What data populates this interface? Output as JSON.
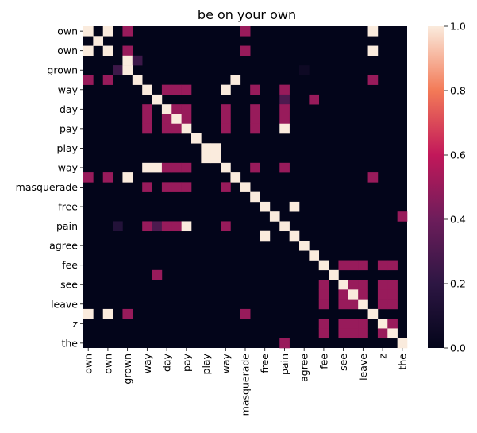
{
  "chart_data": {
    "type": "heatmap",
    "title": "be on your own",
    "labels": [
      "own",
      "",
      "own",
      "",
      "grown",
      "",
      "way",
      "",
      "day",
      "",
      "pay",
      "",
      "play",
      "",
      "way",
      "",
      "masquerade",
      "",
      "free",
      "",
      "pain",
      "",
      "agree",
      "",
      "fee",
      "",
      "see",
      "",
      "leave",
      "",
      "z",
      "",
      "the"
    ],
    "tick_labels": [
      "own",
      "own",
      "grown",
      "way",
      "day",
      "pay",
      "play",
      "way",
      "masquerade",
      "free",
      "pain",
      "agree",
      "fee",
      "see",
      "leave",
      "z",
      "the"
    ],
    "colorbar": {
      "min": 0.0,
      "max": 1.0,
      "ticks": [
        "0.0",
        "0.2",
        "0.4",
        "0.6",
        "0.8",
        "1.0"
      ]
    },
    "colormap": [
      "#03051a",
      "#4c1d4b",
      "#a11a5b",
      "#e83f3f",
      "#f69c73",
      "#faebdd"
    ],
    "matrix": [
      [
        1,
        0,
        1,
        0,
        0.5,
        0,
        0,
        0,
        0,
        0,
        0,
        0,
        0,
        0,
        0,
        0,
        0,
        0,
        0,
        0,
        0,
        0,
        0,
        0,
        0,
        0,
        0,
        0,
        0,
        0,
        0,
        0,
        0
      ],
      [
        0,
        1,
        0,
        0,
        0,
        0,
        0,
        0,
        0,
        0,
        0,
        0,
        0,
        0,
        0,
        0,
        0,
        0,
        0,
        0,
        0,
        0,
        0,
        0,
        0,
        0,
        0,
        0,
        0,
        0,
        0,
        0,
        0
      ],
      [
        1,
        0,
        1,
        0,
        0.5,
        0,
        0,
        0,
        0,
        0,
        0,
        0,
        0,
        0,
        0,
        0,
        0,
        0,
        0,
        0,
        0,
        0,
        0,
        0,
        0,
        0,
        0,
        0,
        0,
        0,
        0,
        0,
        0
      ],
      [
        0,
        0,
        0,
        0,
        0,
        0,
        0,
        0,
        0,
        0,
        0,
        0,
        0,
        0,
        0,
        0,
        0,
        0,
        0,
        0,
        0,
        0,
        0,
        0,
        0,
        0,
        0,
        0,
        0,
        0,
        0,
        0,
        0
      ],
      [
        0,
        0,
        0,
        0,
        0,
        0,
        0,
        0,
        0,
        0,
        0,
        0,
        0,
        0,
        0,
        0,
        0,
        0,
        0,
        0,
        0,
        0,
        0,
        0,
        0,
        0,
        0,
        0,
        0,
        0,
        0,
        0,
        0
      ],
      [
        0,
        0,
        0,
        0,
        0,
        0,
        0,
        0,
        0,
        0,
        0,
        0,
        0,
        0,
        0,
        0,
        0,
        0,
        0,
        0,
        0,
        0,
        0,
        0,
        0,
        0,
        0,
        0,
        0,
        0,
        0,
        0,
        0
      ],
      [
        0,
        0,
        0,
        0,
        0,
        0,
        1,
        0,
        0,
        0,
        0,
        0,
        0,
        0,
        1,
        0,
        0,
        0,
        0,
        0,
        0,
        0,
        0,
        0,
        0,
        0,
        0,
        0,
        0,
        0,
        0,
        0,
        0
      ],
      [
        0,
        0,
        0,
        0,
        0,
        0,
        0,
        0,
        0,
        0,
        0,
        0,
        0,
        0,
        0,
        0,
        0,
        0,
        0,
        0,
        0,
        0,
        0,
        0,
        0,
        0,
        0,
        0,
        0,
        0,
        0,
        0,
        0
      ],
      [
        0,
        0,
        0,
        0,
        0,
        0,
        0,
        0,
        1,
        0,
        0,
        0,
        0,
        0,
        0,
        0,
        0,
        0,
        0,
        0,
        0,
        0,
        0,
        0,
        0,
        0,
        0,
        0,
        0,
        0,
        0,
        0,
        0
      ],
      [
        0,
        0,
        0,
        0,
        0,
        0,
        0,
        0,
        0,
        0,
        0,
        0,
        0,
        0,
        0,
        0,
        0,
        0,
        0,
        0,
        0,
        0,
        0,
        0,
        0,
        0,
        0,
        0,
        0,
        0,
        0,
        0,
        0
      ],
      [
        0,
        0,
        0,
        0,
        0,
        0,
        0,
        0,
        0,
        0,
        1,
        0,
        0,
        0,
        0,
        0,
        0,
        0,
        0,
        0,
        0,
        0,
        0,
        0,
        0,
        0,
        0,
        0,
        0,
        0,
        0,
        0,
        0
      ],
      [
        0,
        0,
        0,
        0,
        0,
        0,
        0,
        0,
        0,
        0,
        0,
        0,
        0,
        0,
        0,
        0,
        0,
        0,
        0,
        0,
        0,
        0,
        0,
        0,
        0,
        0,
        0,
        0,
        0,
        0,
        0,
        0,
        0
      ],
      [
        0,
        0,
        0,
        0,
        0,
        0,
        0,
        0,
        0,
        0,
        0,
        0,
        1,
        1,
        0,
        0,
        0,
        0,
        0,
        0,
        0,
        0,
        0,
        0,
        0,
        0,
        0,
        0,
        0,
        0,
        0,
        0,
        0
      ],
      [
        0,
        0,
        0,
        0,
        0,
        0,
        0,
        0,
        0,
        0,
        0,
        0,
        1,
        1,
        0,
        0,
        0,
        0,
        0,
        0,
        0,
        0,
        0,
        0,
        0,
        0,
        0,
        0,
        0,
        0,
        0,
        0,
        0
      ],
      [
        0,
        0,
        0,
        0,
        0,
        0,
        1,
        0,
        0,
        0,
        0,
        0,
        0,
        0,
        1,
        0,
        0,
        0,
        0,
        0,
        0,
        0,
        0,
        0,
        0,
        0,
        0,
        0,
        0,
        0,
        0,
        0,
        0
      ],
      [
        0,
        0,
        0,
        0,
        0,
        0,
        0,
        0,
        0,
        0,
        0,
        0,
        0,
        0,
        0,
        0,
        0,
        0,
        0,
        0,
        0,
        0,
        0,
        0,
        0,
        0,
        0,
        0,
        0,
        0,
        0,
        0,
        0
      ],
      [
        0,
        0,
        0,
        0,
        0,
        0,
        0,
        0,
        0,
        0,
        0,
        0,
        0,
        0,
        0,
        0,
        1,
        0,
        0,
        0,
        0,
        0,
        0,
        0,
        0,
        0,
        0,
        0,
        0,
        0,
        0,
        0,
        0
      ],
      [
        0,
        0,
        0,
        0,
        0,
        0,
        0,
        0,
        0,
        0,
        0,
        0,
        0,
        0,
        0,
        0,
        0,
        0,
        0,
        0,
        0,
        0,
        0,
        0,
        0,
        0,
        0,
        0,
        0,
        0,
        0,
        0,
        0
      ],
      [
        0,
        0,
        0,
        0,
        0,
        0,
        0,
        0,
        0,
        0,
        0,
        0,
        0,
        0,
        0,
        0,
        0,
        0,
        1,
        0,
        0,
        0,
        0,
        0,
        0,
        0,
        0,
        0,
        0,
        0,
        0,
        0,
        0
      ],
      [
        0,
        0,
        0,
        0,
        0,
        0,
        0,
        0,
        0,
        0,
        0,
        0,
        0,
        0,
        0,
        0,
        0,
        0,
        0,
        0,
        0,
        0,
        0,
        0,
        0,
        0,
        0,
        0,
        0,
        0,
        0,
        0,
        0
      ],
      [
        0,
        0,
        0,
        0,
        0,
        0,
        0,
        0,
        0,
        0,
        0,
        0,
        0,
        0,
        0,
        0,
        0,
        0,
        0,
        0,
        1,
        0,
        0,
        0,
        0,
        0,
        0,
        0,
        0,
        0,
        0,
        0,
        0
      ],
      [
        0,
        0,
        0,
        0,
        0,
        0,
        0,
        0,
        0,
        0,
        0,
        0,
        0,
        0,
        0,
        0,
        0,
        0,
        0,
        0,
        0,
        0,
        0,
        0,
        0,
        0,
        0,
        0,
        0,
        0,
        0,
        0,
        0
      ],
      [
        0,
        0,
        0,
        0,
        0,
        0,
        0,
        0,
        0,
        0,
        0,
        0,
        0,
        0,
        0,
        0,
        0,
        0,
        0,
        0,
        0,
        0,
        1,
        0,
        0,
        0,
        0,
        0,
        0,
        0,
        0,
        0,
        0
      ],
      [
        0,
        0,
        0,
        0,
        0,
        0,
        0,
        0,
        0,
        0,
        0,
        0,
        0,
        0,
        0,
        0,
        0,
        0,
        0,
        0,
        0,
        0,
        0,
        0,
        0,
        0,
        0,
        0,
        0,
        0,
        0,
        0,
        0
      ],
      [
        0,
        0,
        0,
        0,
        0,
        0,
        0,
        0,
        0,
        0,
        0,
        0,
        0,
        0,
        0,
        0,
        0,
        0,
        0,
        0,
        0,
        0,
        0,
        0,
        1,
        0,
        0,
        0,
        0,
        0,
        0,
        0,
        0
      ],
      [
        0,
        0,
        0,
        0,
        0,
        0,
        0,
        0,
        0,
        0,
        0,
        0,
        0,
        0,
        0,
        0,
        0,
        0,
        0,
        0,
        0,
        0,
        0,
        0,
        0,
        0,
        0,
        0,
        0,
        0,
        0,
        0,
        0
      ],
      [
        0,
        0,
        0,
        0,
        0,
        0,
        0,
        0,
        0,
        0,
        0,
        0,
        0,
        0,
        0,
        0,
        0,
        0,
        0,
        0,
        0,
        0,
        0,
        0,
        0,
        0,
        1,
        0,
        0,
        0,
        0,
        0,
        0
      ],
      [
        0,
        0,
        0,
        0,
        0,
        0,
        0,
        0,
        0,
        0,
        0,
        0,
        0,
        0,
        0,
        0,
        0,
        0,
        0,
        0,
        0,
        0,
        0,
        0,
        0,
        0,
        0,
        0,
        0,
        0,
        0,
        0,
        0
      ],
      [
        0,
        0,
        0,
        0,
        0,
        0,
        0,
        0,
        0,
        0,
        0,
        0,
        0,
        0,
        0,
        0,
        0,
        0,
        0,
        0,
        0,
        0,
        0,
        0,
        0,
        0,
        0,
        0,
        1,
        0,
        0,
        0,
        0
      ],
      [
        1,
        0,
        1,
        0,
        0.5,
        0,
        0,
        0,
        0,
        0,
        0,
        0,
        0,
        0,
        0,
        0,
        0,
        0,
        0,
        0,
        0,
        0,
        0,
        0,
        0,
        0,
        0,
        0,
        0,
        0,
        0,
        0,
        0
      ],
      [
        0,
        0,
        0,
        0,
        0,
        0,
        0,
        0,
        0,
        0,
        0,
        0,
        0,
        0,
        0,
        0,
        0,
        0,
        0,
        0,
        0,
        0,
        0,
        0,
        0,
        0,
        0,
        0,
        0,
        0,
        1,
        0,
        0
      ],
      [
        0,
        0,
        0,
        0,
        0,
        0,
        0,
        0,
        0,
        0,
        0,
        0,
        0,
        0,
        0,
        0,
        0,
        0,
        0,
        0,
        0,
        0,
        0,
        0,
        0,
        0,
        0,
        0,
        0,
        0,
        0,
        1,
        0
      ],
      [
        0,
        0,
        0,
        0,
        0,
        0,
        0,
        0,
        0,
        0,
        0,
        0,
        0,
        0,
        0,
        0,
        0,
        0,
        0,
        0,
        0,
        0,
        0,
        0,
        0,
        0,
        0,
        0,
        0,
        0,
        0,
        0,
        1
      ]
    ],
    "extra_cells": [
      [
        0,
        16,
        0.5
      ],
      [
        0,
        29,
        1
      ],
      [
        2,
        16,
        0.5
      ],
      [
        2,
        29,
        1
      ],
      [
        3,
        4,
        1
      ],
      [
        3,
        5,
        0.25
      ],
      [
        4,
        3,
        0.25
      ],
      [
        4,
        4,
        1
      ],
      [
        4,
        22,
        0.05
      ],
      [
        5,
        0,
        0.5
      ],
      [
        5,
        2,
        0.5
      ],
      [
        5,
        5,
        1
      ],
      [
        5,
        15,
        1
      ],
      [
        5,
        29,
        0.5
      ],
      [
        6,
        20,
        0.5
      ],
      [
        6,
        8,
        0.5
      ],
      [
        6,
        9,
        0.5
      ],
      [
        6,
        10,
        0.5
      ],
      [
        6,
        17,
        0.5
      ],
      [
        7,
        7,
        1
      ],
      [
        7,
        20,
        0.3
      ],
      [
        7,
        23,
        0.5
      ],
      [
        8,
        6,
        0.5
      ],
      [
        8,
        9,
        0.5
      ],
      [
        8,
        10,
        0.5
      ],
      [
        8,
        14,
        0.5
      ],
      [
        8,
        17,
        0.5
      ],
      [
        8,
        20,
        0.5
      ],
      [
        9,
        6,
        0.5
      ],
      [
        9,
        8,
        0.5
      ],
      [
        9,
        9,
        1
      ],
      [
        9,
        10,
        0.5
      ],
      [
        9,
        14,
        0.5
      ],
      [
        9,
        17,
        0.5
      ],
      [
        9,
        20,
        0.5
      ],
      [
        10,
        6,
        0.5
      ],
      [
        10,
        8,
        0.5
      ],
      [
        10,
        9,
        0.5
      ],
      [
        10,
        14,
        0.5
      ],
      [
        10,
        17,
        0.5
      ],
      [
        10,
        20,
        1
      ],
      [
        11,
        11,
        1
      ],
      [
        14,
        7,
        1
      ],
      [
        14,
        8,
        0.5
      ],
      [
        14,
        9,
        0.5
      ],
      [
        14,
        10,
        0.5
      ],
      [
        14,
        17,
        0.5
      ],
      [
        14,
        20,
        0.5
      ],
      [
        15,
        0,
        0.5
      ],
      [
        15,
        2,
        0.5
      ],
      [
        15,
        4,
        1
      ],
      [
        15,
        15,
        1
      ],
      [
        15,
        29,
        0.5
      ],
      [
        16,
        16,
        1
      ],
      [
        17,
        17,
        1
      ],
      [
        18,
        18,
        1
      ],
      [
        18,
        21,
        1
      ],
      [
        19,
        19,
        1
      ],
      [
        19,
        32,
        0.5
      ],
      [
        16,
        6,
        0.5
      ],
      [
        16,
        8,
        0.5
      ],
      [
        16,
        9,
        0.5
      ],
      [
        16,
        10,
        0.5
      ],
      [
        16,
        14,
        0.5
      ],
      [
        20,
        3,
        0.15
      ],
      [
        20,
        6,
        0.5
      ],
      [
        20,
        7,
        0.3
      ],
      [
        20,
        8,
        0.5
      ],
      [
        20,
        9,
        0.5
      ],
      [
        20,
        10,
        1
      ],
      [
        20,
        14,
        0.5
      ],
      [
        21,
        18,
        1
      ],
      [
        21,
        21,
        1
      ],
      [
        23,
        23,
        1
      ],
      [
        25,
        7,
        0.5
      ],
      [
        25,
        25,
        1
      ],
      [
        24,
        26,
        0.5
      ],
      [
        24,
        27,
        0.5
      ],
      [
        24,
        28,
        0.5
      ],
      [
        24,
        30,
        0.5
      ],
      [
        24,
        31,
        0.5
      ],
      [
        26,
        24,
        0.5
      ],
      [
        26,
        27,
        0.5
      ],
      [
        26,
        28,
        0.5
      ],
      [
        26,
        30,
        0.5
      ],
      [
        26,
        31,
        0.5
      ],
      [
        27,
        24,
        0.5
      ],
      [
        27,
        26,
        0.5
      ],
      [
        27,
        27,
        1
      ],
      [
        27,
        28,
        0.5
      ],
      [
        27,
        30,
        0.5
      ],
      [
        27,
        31,
        0.5
      ],
      [
        28,
        24,
        0.5
      ],
      [
        28,
        26,
        0.5
      ],
      [
        28,
        27,
        0.5
      ],
      [
        28,
        30,
        0.5
      ],
      [
        28,
        31,
        0.5
      ],
      [
        29,
        29,
        1
      ],
      [
        29,
        16,
        0.5
      ],
      [
        30,
        24,
        0.5
      ],
      [
        30,
        26,
        0.5
      ],
      [
        30,
        27,
        0.5
      ],
      [
        30,
        28,
        0.5
      ],
      [
        30,
        31,
        0.5
      ],
      [
        31,
        24,
        0.5
      ],
      [
        31,
        26,
        0.5
      ],
      [
        31,
        27,
        0.5
      ],
      [
        31,
        28,
        0.5
      ],
      [
        31,
        30,
        0.5
      ],
      [
        32,
        20,
        0.5
      ]
    ]
  }
}
